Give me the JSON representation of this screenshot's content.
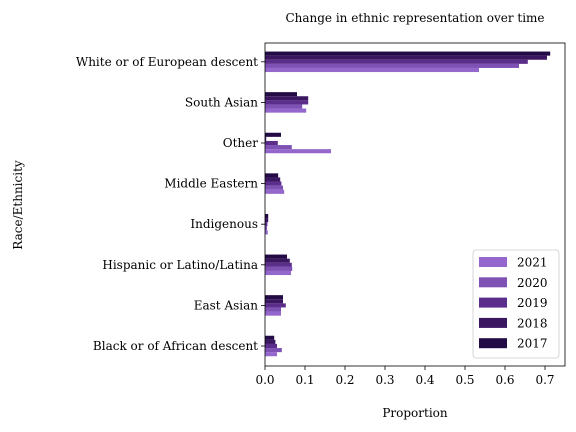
{
  "chart_data": {
    "type": "bar",
    "orientation": "horizontal",
    "title": "Change in ethnic representation over time",
    "xlabel": "Proportion",
    "ylabel": "Race/Ethnicity",
    "xlim": [
      0,
      0.75
    ],
    "xticks": [
      "0.0",
      "0.1",
      "0.2",
      "0.3",
      "0.4",
      "0.5",
      "0.6",
      "0.7"
    ],
    "grid": false,
    "legend_position": "bottom-right",
    "categories": [
      "White or of European descent",
      "South Asian",
      "Other",
      "Middle Eastern",
      "Indigenous",
      "Hispanic or Latino/Latina",
      "East Asian",
      "Black or of African descent"
    ],
    "series": [
      {
        "name": "2021",
        "color": "#9467cd",
        "values": [
          0.535,
          0.103,
          0.165,
          0.048,
          0.007,
          0.065,
          0.04,
          0.03
        ]
      },
      {
        "name": "2020",
        "color": "#7e52b5",
        "values": [
          0.635,
          0.093,
          0.067,
          0.045,
          0.005,
          0.068,
          0.04,
          0.042
        ]
      },
      {
        "name": "2019",
        "color": "#5a2e8a",
        "values": [
          0.657,
          0.108,
          0.032,
          0.041,
          0.006,
          0.067,
          0.052,
          0.03
        ]
      },
      {
        "name": "2018",
        "color": "#3b1661",
        "values": [
          0.705,
          0.108,
          0.003,
          0.038,
          0.008,
          0.062,
          0.045,
          0.026
        ]
      },
      {
        "name": "2017",
        "color": "#230b45",
        "values": [
          0.713,
          0.08,
          0.04,
          0.033,
          0.008,
          0.055,
          0.045,
          0.023
        ]
      }
    ]
  }
}
